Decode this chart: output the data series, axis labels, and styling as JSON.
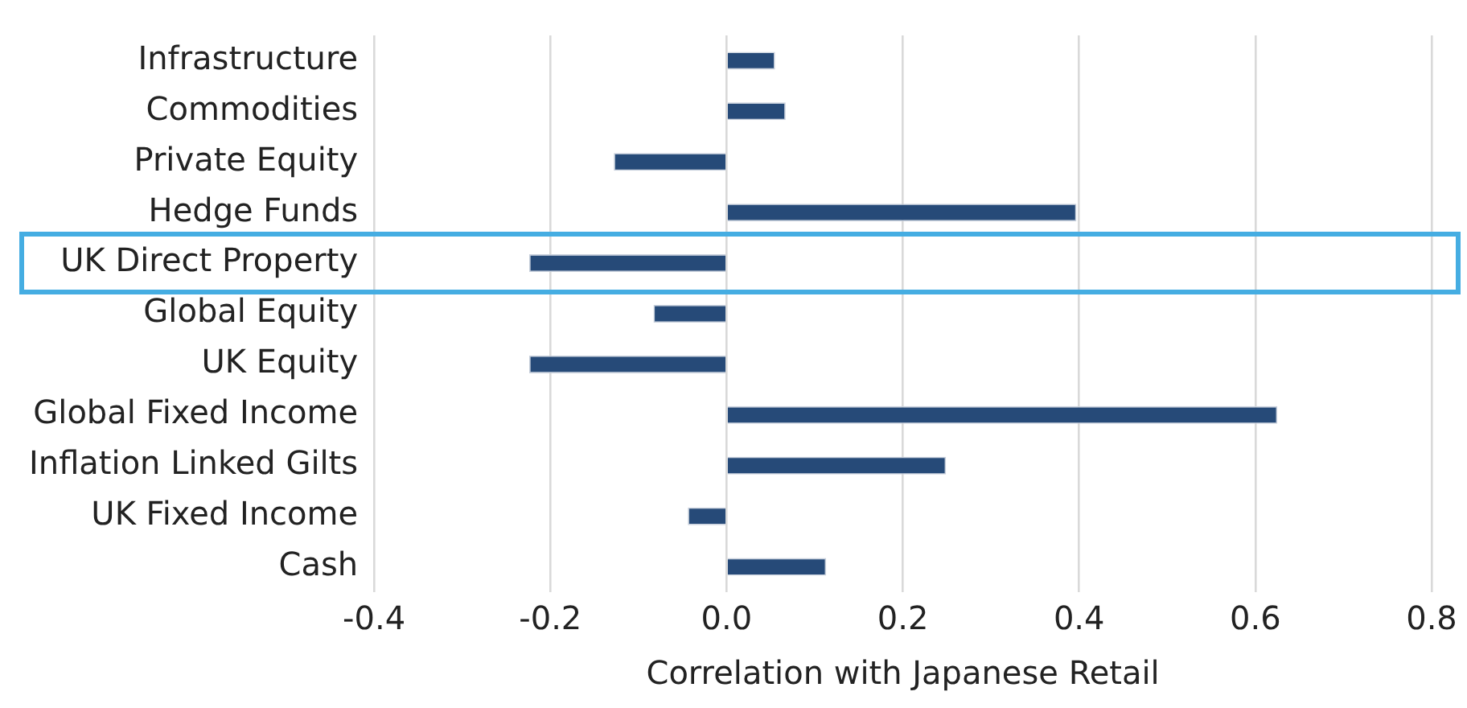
{
  "chart_data": {
    "type": "bar",
    "orientation": "horizontal",
    "xlabel": "Correlation with Japanese Retail",
    "categories": [
      "Infrastructure",
      "Commodities",
      "Private Equity",
      "Hedge Funds",
      "UK Direct Property",
      "Global Equity",
      "UK Equity",
      "Global Fixed Income",
      "Inflation Linked Gilts",
      "UK Fixed Income",
      "Cash"
    ],
    "values": [
      0.055,
      0.067,
      -0.128,
      0.397,
      -0.224,
      -0.083,
      -0.224,
      0.625,
      0.249,
      -0.044,
      0.113
    ],
    "color": "#264a78",
    "xlim": [
      -0.4,
      0.8
    ],
    "xticks": [
      {
        "value": -0.4,
        "label": "-0.4"
      },
      {
        "value": -0.2,
        "label": "-0.2"
      },
      {
        "value": 0,
        "label": "0.0"
      },
      {
        "value": 0.2,
        "label": "0.2"
      },
      {
        "value": 0.4,
        "label": "0.4"
      },
      {
        "value": 0.6,
        "label": "0.6"
      },
      {
        "value": 0.8,
        "label": "0.8"
      }
    ],
    "grid": "x",
    "legend": false
  }
}
